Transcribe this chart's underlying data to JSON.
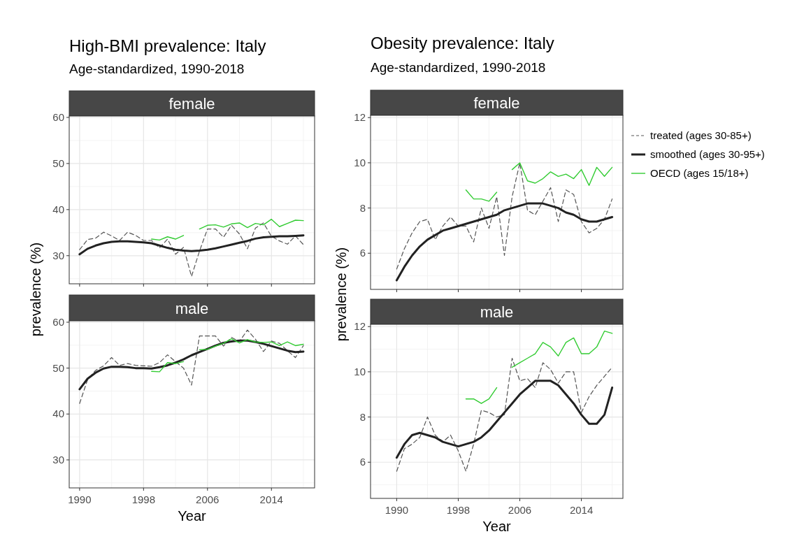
{
  "chart_data": [
    {
      "type": "line",
      "title": "female",
      "annotations": [
        "High-BMI prevalence: Italy",
        "Age-standardized, 1990-2018"
      ],
      "tick_labels": "y",
      "grid": true,
      "x": [
        1990,
        1991,
        1992,
        1993,
        1994,
        1995,
        1996,
        1997,
        1998,
        1999,
        2000,
        2001,
        2002,
        2003,
        2004,
        2005,
        2006,
        2007,
        2008,
        2009,
        2010,
        2011,
        2012,
        2013,
        2014,
        2015,
        2016,
        2017,
        2018
      ],
      "xlim": [
        1988.7,
        2019.4
      ],
      "xticks": [
        1990,
        1998,
        2006,
        2014
      ],
      "ylim": [
        23.9,
        60.3
      ],
      "yticks": [
        30,
        40,
        50,
        60
      ],
      "series": [
        {
          "color": "#555555",
          "line_style": "dashed",
          "values": [
            31.3,
            33.5,
            33.8,
            35.1,
            34.3,
            33.3,
            35.1,
            34.4,
            33.3,
            33.3,
            31.7,
            33.6,
            30.3,
            31.8,
            25.5,
            31.0,
            35.8,
            35.8,
            34.0,
            36.6,
            34.7,
            31.5,
            36.0,
            37.1,
            34.2,
            33.2,
            32.5,
            34.3,
            32.4
          ]
        },
        {
          "color": "#222222",
          "line_style": "solid",
          "values": [
            30.3,
            31.5,
            32.2,
            32.7,
            33.0,
            33.1,
            33.1,
            33.0,
            32.9,
            32.7,
            32.2,
            31.7,
            31.3,
            31.1,
            31.0,
            31.1,
            31.3,
            31.6,
            32.0,
            32.4,
            32.8,
            33.2,
            33.7,
            34.0,
            34.1,
            34.2,
            34.2,
            34.3,
            34.4
          ]
        },
        {
          "color": "#33cc33",
          "line_style": "solid",
          "values": [
            null,
            null,
            null,
            null,
            null,
            null,
            null,
            null,
            null,
            33.6,
            33.4,
            34.1,
            33.6,
            34.4,
            null,
            35.8,
            36.6,
            36.7,
            36.2,
            36.9,
            37.1,
            36.1,
            37.0,
            36.7,
            37.9,
            36.3,
            37.0,
            37.7,
            37.6
          ]
        }
      ]
    },
    {
      "type": "line",
      "title": "male",
      "xlabel": "Year",
      "ylabel": "prevalence (%)",
      "grid": true,
      "x": [
        1990,
        1991,
        1992,
        1993,
        1994,
        1995,
        1996,
        1997,
        1998,
        1999,
        2000,
        2001,
        2002,
        2003,
        2004,
        2005,
        2006,
        2007,
        2008,
        2009,
        2010,
        2011,
        2012,
        2013,
        2014,
        2015,
        2016,
        2017,
        2018
      ],
      "xlim": [
        1988.7,
        2019.4
      ],
      "xticks": [
        1990,
        1998,
        2006,
        2014
      ],
      "ylim": [
        23.9,
        60.3
      ],
      "yticks": [
        30,
        40,
        50,
        60
      ],
      "series": [
        {
          "color": "#555555",
          "line_style": "dashed",
          "values": [
            42.3,
            47.5,
            49.5,
            50.5,
            52.3,
            50.6,
            51.0,
            50.6,
            50.5,
            50.4,
            51.2,
            52.9,
            51.4,
            50.0,
            46.3,
            57.0,
            57.0,
            57.0,
            54.8,
            56.7,
            55.8,
            58.3,
            56.3,
            53.6,
            55.9,
            55.4,
            53.8,
            52.3,
            54.9
          ]
        },
        {
          "color": "#222222",
          "line_style": "solid",
          "values": [
            45.4,
            47.7,
            49.0,
            49.9,
            50.3,
            50.3,
            50.2,
            50.0,
            50.0,
            49.9,
            50.2,
            50.6,
            51.2,
            51.9,
            52.8,
            53.5,
            54.2,
            54.9,
            55.5,
            55.8,
            56.0,
            56.0,
            55.7,
            55.3,
            54.8,
            54.3,
            53.8,
            53.5,
            53.6
          ]
        },
        {
          "color": "#33cc33",
          "line_style": "solid",
          "values": [
            null,
            null,
            null,
            null,
            null,
            null,
            null,
            null,
            null,
            49.3,
            49.2,
            51.2,
            51.0,
            51.4,
            null,
            54.0,
            54.1,
            54.8,
            55.4,
            56.4,
            55.5,
            56.2,
            55.7,
            55.6,
            55.7,
            54.9,
            55.7,
            54.9,
            55.2
          ]
        }
      ]
    },
    {
      "type": "line",
      "title": "female",
      "annotations": [
        "Obesity prevalence: Italy",
        "Age-standardized, 1990-2018"
      ],
      "tick_labels": "y",
      "grid": true,
      "legend": "right",
      "x": [
        1990,
        1991,
        1992,
        1993,
        1994,
        1995,
        1996,
        1997,
        1998,
        1999,
        2000,
        2001,
        2002,
        2003,
        2004,
        2005,
        2006,
        2007,
        2008,
        2009,
        2010,
        2011,
        2012,
        2013,
        2014,
        2015,
        2016,
        2017,
        2018
      ],
      "xlim": [
        1986.6,
        2019.4
      ],
      "xticks": [
        1990,
        1998,
        2006,
        2014
      ],
      "ylim": [
        4.4,
        12.1
      ],
      "yticks": [
        6,
        8,
        10,
        12
      ],
      "series": [
        {
          "name": "treated (ages 30-85+)",
          "color": "#555555",
          "line_style": "dashed",
          "values": [
            5.3,
            6.2,
            6.9,
            7.4,
            7.5,
            6.6,
            7.2,
            7.6,
            7.2,
            7.2,
            6.5,
            8.0,
            7.1,
            8.5,
            5.9,
            8.5,
            10.0,
            7.9,
            7.7,
            8.3,
            8.9,
            7.4,
            8.8,
            8.6,
            7.4,
            6.9,
            7.1,
            7.5,
            8.4
          ]
        },
        {
          "name": "smoothed (ages 30-95+)",
          "color": "#222222",
          "line_style": "solid",
          "values": [
            4.8,
            5.4,
            5.9,
            6.3,
            6.6,
            6.8,
            7.0,
            7.1,
            7.2,
            7.3,
            7.4,
            7.5,
            7.6,
            7.7,
            7.9,
            8.0,
            8.1,
            8.2,
            8.2,
            8.2,
            8.1,
            8.0,
            7.8,
            7.7,
            7.5,
            7.4,
            7.4,
            7.5,
            7.6
          ]
        },
        {
          "name": "OECD (ages 15/18+)",
          "color": "#33cc33",
          "line_style": "solid",
          "values": [
            null,
            null,
            null,
            null,
            null,
            null,
            null,
            null,
            null,
            8.8,
            8.4,
            8.4,
            8.3,
            8.7,
            null,
            9.7,
            10.0,
            9.2,
            9.1,
            9.3,
            9.6,
            9.4,
            9.5,
            9.3,
            9.7,
            9.0,
            9.8,
            9.4,
            9.8
          ]
        }
      ]
    },
    {
      "type": "line",
      "title": "male",
      "xlabel": "Year",
      "ylabel": "prevalence (%)",
      "grid": true,
      "x": [
        1990,
        1991,
        1992,
        1993,
        1994,
        1995,
        1996,
        1997,
        1998,
        1999,
        2000,
        2001,
        2002,
        2003,
        2004,
        2005,
        2006,
        2007,
        2008,
        2009,
        2010,
        2011,
        2012,
        2013,
        2014,
        2015,
        2016,
        2017,
        2018
      ],
      "xlim": [
        1986.6,
        2019.4
      ],
      "xticks": [
        1990,
        1998,
        2006,
        2014
      ],
      "ylim": [
        4.4,
        12.1
      ],
      "yticks": [
        6,
        8,
        10,
        12
      ],
      "series": [
        {
          "color": "#555555",
          "line_style": "dashed",
          "values": [
            5.6,
            6.6,
            6.8,
            7.1,
            8.0,
            7.2,
            6.9,
            7.2,
            6.5,
            5.6,
            6.8,
            8.3,
            8.2,
            8.0,
            8.1,
            10.6,
            9.6,
            9.7,
            9.3,
            10.4,
            10.1,
            9.5,
            10.0,
            10.0,
            8.2,
            8.9,
            9.4,
            9.8,
            10.2
          ]
        },
        {
          "color": "#222222",
          "line_style": "solid",
          "values": [
            6.2,
            6.8,
            7.2,
            7.3,
            7.2,
            7.1,
            6.9,
            6.8,
            6.7,
            6.8,
            6.9,
            7.1,
            7.4,
            7.8,
            8.2,
            8.6,
            9.0,
            9.3,
            9.6,
            9.6,
            9.6,
            9.4,
            9.0,
            8.6,
            8.1,
            7.7,
            7.7,
            8.1,
            9.3
          ]
        },
        {
          "color": "#33cc33",
          "line_style": "solid",
          "values": [
            null,
            null,
            null,
            null,
            null,
            null,
            null,
            null,
            null,
            8.8,
            8.8,
            8.6,
            8.8,
            9.3,
            null,
            10.2,
            10.4,
            10.6,
            10.8,
            11.3,
            11.1,
            10.7,
            11.3,
            11.5,
            10.8,
            10.8,
            11.1,
            11.8,
            11.7
          ]
        }
      ]
    }
  ]
}
